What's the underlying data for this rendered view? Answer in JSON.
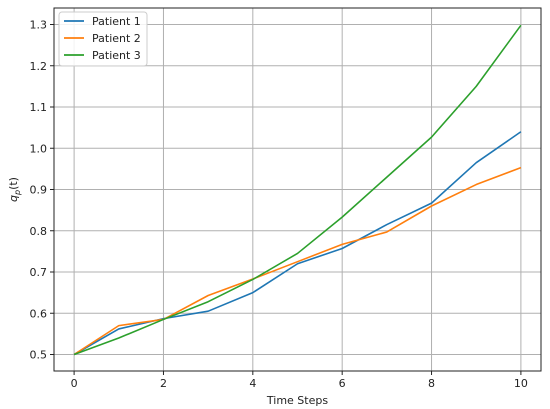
{
  "chart_data": {
    "type": "line",
    "title": "",
    "xlabel": "Time Steps",
    "ylabel": "q",
    "ylabel_sub": "p",
    "ylabel_arg": "(t)",
    "x": [
      0,
      1,
      2,
      3,
      4,
      5,
      6,
      7,
      8,
      9,
      10
    ],
    "xlim": [
      -0.45,
      10.45
    ],
    "ylim": [
      0.46,
      1.34
    ],
    "xticks": [
      0,
      2,
      4,
      6,
      8,
      10
    ],
    "xtick_labels": [
      "0",
      "2",
      "4",
      "6",
      "8",
      "10"
    ],
    "yticks": [
      0.5,
      0.6,
      0.7,
      0.8,
      0.9,
      1.0,
      1.1,
      1.2,
      1.3
    ],
    "ytick_labels": [
      "0.5",
      "0.6",
      "0.7",
      "0.8",
      "0.9",
      "1.0",
      "1.1",
      "1.2",
      "1.3"
    ],
    "grid": true,
    "legend_position": "top-left",
    "series": [
      {
        "name": "Patient 1",
        "color": "#1f77b4",
        "values": [
          0.5,
          0.562,
          0.587,
          0.605,
          0.65,
          0.72,
          0.757,
          0.815,
          0.867,
          0.965,
          1.04
        ]
      },
      {
        "name": "Patient 2",
        "color": "#ff7f0e",
        "values": [
          0.5,
          0.57,
          0.585,
          0.643,
          0.683,
          0.725,
          0.767,
          0.797,
          0.86,
          0.912,
          0.953
        ]
      },
      {
        "name": "Patient 3",
        "color": "#2ca02c",
        "values": [
          0.5,
          0.54,
          0.585,
          0.628,
          0.682,
          0.745,
          0.833,
          0.93,
          1.027,
          1.15,
          1.298
        ]
      }
    ]
  }
}
